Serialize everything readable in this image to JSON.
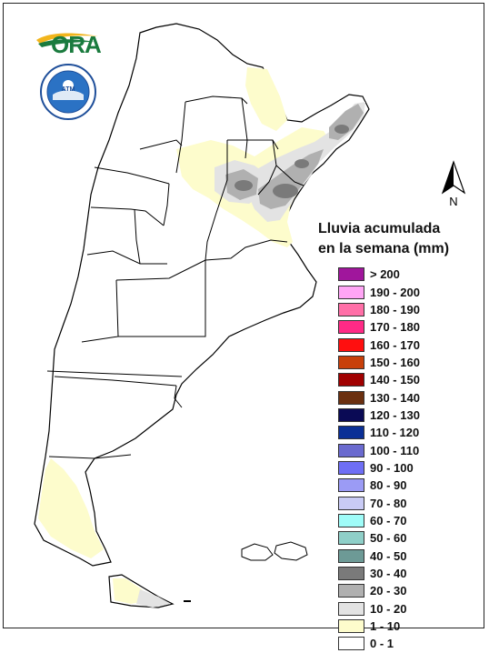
{
  "logo": {
    "text": "ORA",
    "name": "ora-logo"
  },
  "seal": {
    "text": "ATM",
    "name": "servicio-meteorologico-seal"
  },
  "north": {
    "label": "N"
  },
  "legend": {
    "title_line1": "Lluvia acumulada",
    "title_line2": "en la semana (mm)",
    "items": [
      {
        "label": "> 200",
        "color": "#a0169c"
      },
      {
        "label": "190 - 200",
        "color": "#ffa5f5"
      },
      {
        "label": "180 - 190",
        "color": "#ff6fa7"
      },
      {
        "label": "170 - 180",
        "color": "#ff2a86"
      },
      {
        "label": "160 - 170",
        "color": "#ff0f0f"
      },
      {
        "label": "150 - 160",
        "color": "#c8400a"
      },
      {
        "label": "140 - 150",
        "color": "#a00000"
      },
      {
        "label": "130 - 140",
        "color": "#6b3010"
      },
      {
        "label": "120 - 130",
        "color": "#0a0a55"
      },
      {
        "label": "110 - 120",
        "color": "#0a2f96"
      },
      {
        "label": "100 - 110",
        "color": "#6a6acf"
      },
      {
        "label": "90 - 100",
        "color": "#6f6ff5"
      },
      {
        "label": "80 - 90",
        "color": "#9b9bf5"
      },
      {
        "label": "70 - 80",
        "color": "#c9cbf5"
      },
      {
        "label": "60 - 70",
        "color": "#9ffcf8"
      },
      {
        "label": "50 - 60",
        "color": "#8fcfc8"
      },
      {
        "label": "40 - 50",
        "color": "#6d9a96"
      },
      {
        "label": "30 - 40",
        "color": "#7a7a7a"
      },
      {
        "label": "20 - 30",
        "color": "#b0b0b0"
      },
      {
        "label": "10 - 20",
        "color": "#e3e3e3"
      },
      {
        "label": "1 - 10",
        "color": "#fdfccc"
      },
      {
        "label": "0 - 1",
        "color": "#ffffff"
      }
    ]
  },
  "map_colors": {
    "land": "#ffffff",
    "border": "#000000",
    "light_rain": "#fdfccc",
    "rain_10_20": "#e3e3e3",
    "rain_20_30": "#b0b0b0",
    "rain_30_40": "#7a7a7a"
  }
}
